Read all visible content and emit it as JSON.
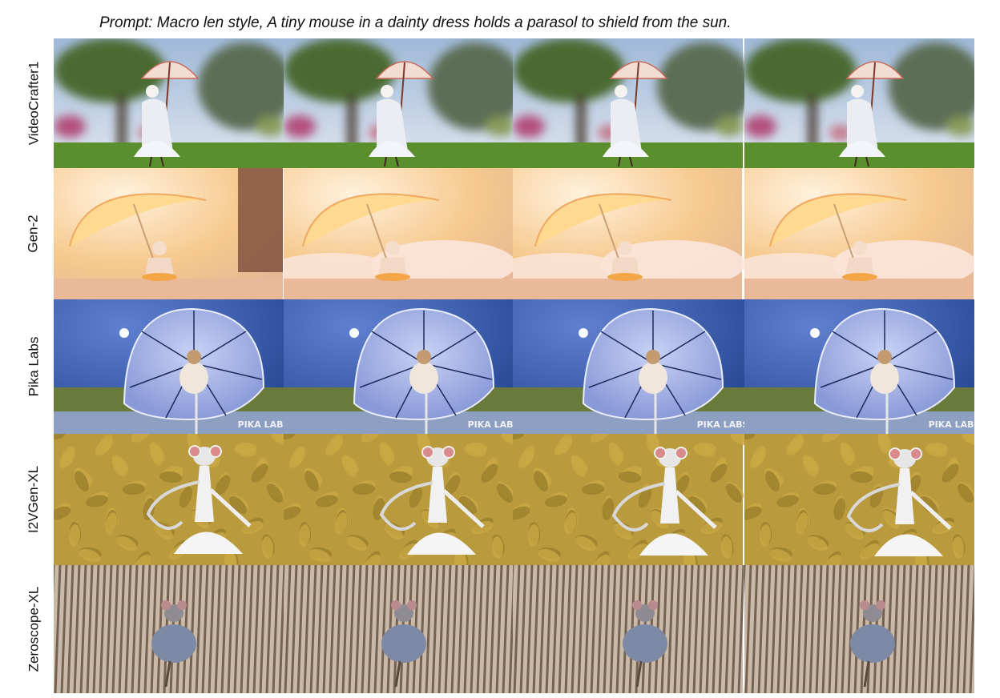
{
  "figure": {
    "prompt": "Prompt: Macro len style, A tiny mouse in a dainty dress holds a parasol to shield from the sun.",
    "rows": [
      {
        "label": "VideoCrafter1",
        "scene": "garden",
        "frames": 4
      },
      {
        "label": "Gen-2",
        "scene": "warm-parasol",
        "frames": 4
      },
      {
        "label": "Pika Labs",
        "scene": "blue-umbrella",
        "frames": 4,
        "watermark": "PIKA LABS"
      },
      {
        "label": "I2VGen-XL",
        "scene": "leaf-dancer",
        "frames": 4
      },
      {
        "label": "Zeroscope-XL",
        "scene": "striped-texture",
        "frames": 4
      }
    ],
    "colors": {
      "garden_sky": "#9fb9d9",
      "garden_grass": "#5b8f2e",
      "warm_glow": "#f6c98e",
      "pika_sky": "#1d3f8a",
      "pika_umbrella": "#8a9ad8",
      "leaf_gold": "#b99a3c",
      "stripe_brown": "#5a4636"
    }
  }
}
